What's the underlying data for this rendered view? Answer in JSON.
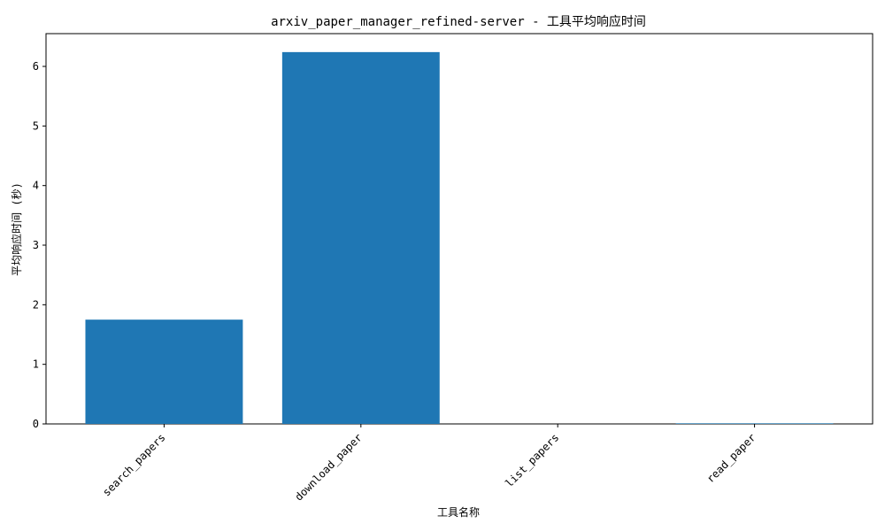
{
  "chart_data": {
    "type": "bar",
    "title": "arxiv_paper_manager_refined-server - 工具平均响应时间",
    "xlabel": "工具名称",
    "ylabel": "平均响应时间 (秒)",
    "categories": [
      "search_papers",
      "download_paper",
      "list_papers",
      "read_paper"
    ],
    "values": [
      1.75,
      6.24,
      0.0,
      0.01
    ],
    "ylim": [
      0,
      6.55
    ],
    "yticks": [
      0,
      1,
      2,
      3,
      4,
      5,
      6
    ],
    "bar_color": "#1f77b4",
    "grid": false,
    "legend": "none"
  }
}
